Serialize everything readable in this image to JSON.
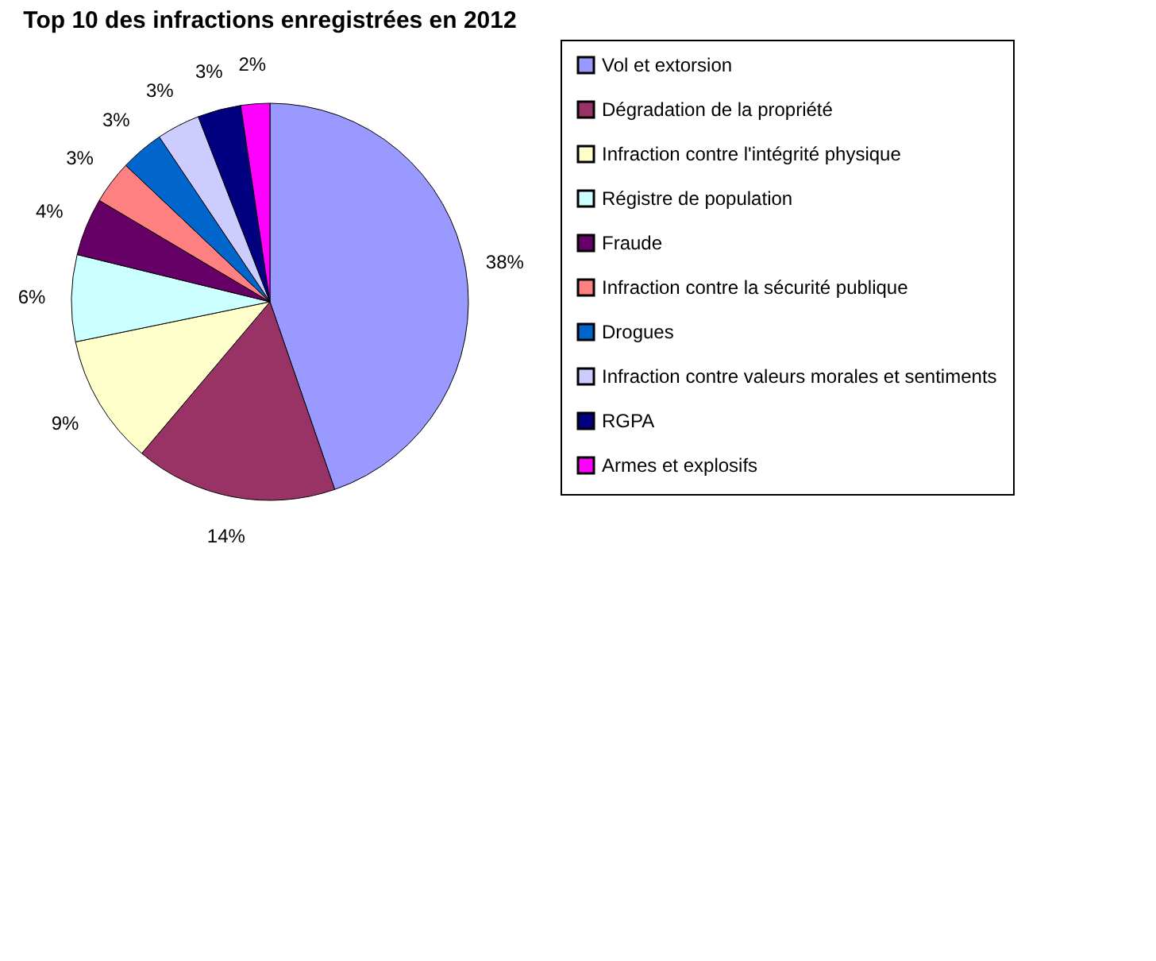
{
  "chart_data": {
    "type": "pie",
    "title": "Top 10 des infractions enregistrées en 2012",
    "categories": [
      "Vol et extorsion",
      "Dégradation de la propriété",
      "Infraction contre l'intégrité physique",
      "Régistre de population",
      "Fraude",
      "Infraction contre la sécurité publique",
      "Drogues",
      "Infraction contre valeurs morales et sentiments",
      "RGPA",
      "Armes et explosifs"
    ],
    "values": [
      38,
      14,
      9,
      6,
      4,
      3,
      3,
      3,
      3,
      2
    ],
    "value_labels": [
      "38%",
      "14%",
      "9%",
      "6%",
      "4%",
      "3%",
      "3%",
      "3%",
      "3%",
      "2%"
    ],
    "colors": [
      "#9999ff",
      "#993366",
      "#ffffcc",
      "#ccffff",
      "#660066",
      "#ff8080",
      "#0066cc",
      "#ccccff",
      "#000080",
      "#ff00ff"
    ],
    "legend": "right"
  }
}
